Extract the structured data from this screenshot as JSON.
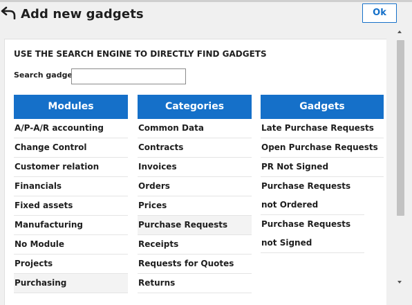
{
  "dialog": {
    "title": "Add new gadgets",
    "ok_label": "Ok"
  },
  "search": {
    "heading": "USE THE SEARCH ENGINE TO DIRECTLY FIND GADGETS",
    "label": "Search gadget",
    "value": ""
  },
  "modules": {
    "header": "Modules",
    "items": [
      "A/P-A/R accounting",
      "Change Control",
      "Customer relation",
      "Financials",
      "Fixed assets",
      "Manufacturing",
      "No Module",
      "Projects",
      "Purchasing"
    ]
  },
  "categories": {
    "header": "Categories",
    "items": [
      "Common Data",
      "Contracts",
      "Invoices",
      "Orders",
      "Prices",
      "Purchase Requests",
      "Receipts",
      "Requests for Quotes",
      "Returns"
    ]
  },
  "gadgets": {
    "header": "Gadgets",
    "items": [
      "Late Purchase Requests",
      "Open Purchase Requests",
      "PR Not Signed",
      "Purchase Requests not Ordered",
      "Purchase Requests not Signed"
    ]
  },
  "colors": {
    "accent": "#1570c9",
    "text": "#1e1e1e",
    "background": "#f0f0f0"
  }
}
